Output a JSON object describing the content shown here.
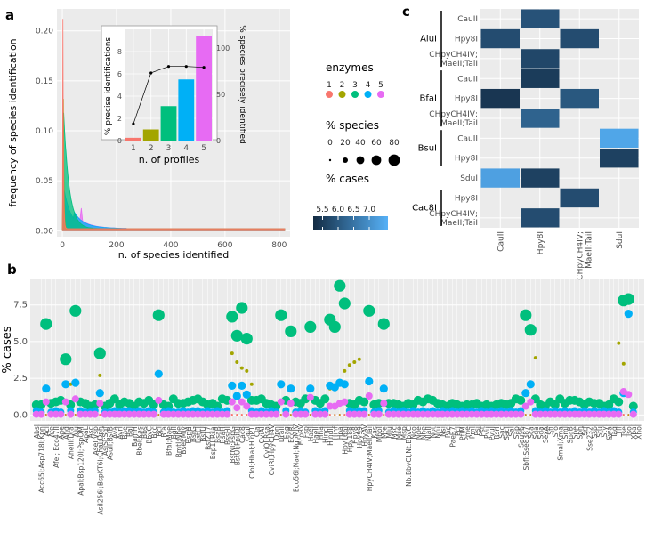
{
  "chart_data": [
    {
      "panel": "a",
      "type": "area",
      "xlabel": "n. of species identified",
      "ylabel": "frequency of species identification",
      "x_ticks": [
        0,
        200,
        400,
        600,
        800
      ],
      "y_ticks": [
        0.0,
        0.05,
        0.1,
        0.15,
        0.2
      ],
      "y_tick_labels": [
        "0.00",
        "0.05",
        "0.10",
        "0.15",
        "0.20"
      ],
      "xlim": [
        -20,
        840
      ],
      "ylim": [
        -0.006,
        0.222
      ],
      "series": [
        {
          "name": "1",
          "peak_x": 2,
          "peak": 0.212
        },
        {
          "name": "2",
          "peak_x": 4,
          "peak": 0.132
        },
        {
          "name": "3",
          "peak_x": 5,
          "peak": 0.118
        },
        {
          "name": "4",
          "peak_x": 6,
          "peak": 0.042
        },
        {
          "name": "5",
          "peak_x": 8,
          "peak": 0.028
        }
      ],
      "spike_x": 70,
      "tail_value": 0.002
    },
    {
      "panel": "a-inset",
      "type": "bar",
      "xlabel": "n. of profiles",
      "ylabel": "% precise identifications",
      "y2label": "% species precisely identified",
      "categories": [
        "1",
        "2",
        "3",
        "4",
        "5"
      ],
      "values": [
        0.25,
        1.0,
        3.1,
        5.5,
        9.4
      ],
      "y_ticks": [
        0,
        2,
        4,
        6,
        8
      ],
      "ylim": [
        0,
        10
      ],
      "line_values": [
        18,
        73,
        80,
        80,
        79
      ],
      "y2_ticks": [
        0,
        50,
        100
      ],
      "y2lim": [
        0,
        120
      ]
    },
    {
      "panel": "b",
      "type": "scatter",
      "ylabel": "% cases",
      "y_ticks": [
        0.0,
        2.5,
        5.0,
        7.5
      ],
      "y_tick_labels": [
        "0.0",
        "2.5",
        "5.0",
        "7.5"
      ],
      "ylim": [
        -0.4,
        9.3
      ],
      "categories": [
        "AbsI",
        "Acc65I;Asp718I;KpnI",
        "AclI",
        "AfeI",
        "AfeI; Eco47III",
        "AgeI",
        "AhdI",
        "AhellI;DraI",
        "AluI",
        "ApaI;Bsp120I;PspOMI",
        "ApaLI",
        "AscI",
        "AseI;VspI",
        "AsiI256I;BspKT6I;ChaI;DpnI",
        "AsiSI;SgfI",
        "AsuII;BstBI",
        "AvaI",
        "AvrII",
        "BaeI",
        "BalI",
        "BamHI",
        "BbeI;KasI",
        "BbsI",
        "BbvCI",
        "BccI",
        "BclI",
        "BfaI",
        "BfaI;MaeI",
        "BglII",
        "BmtI;NheI",
        "BseI;MlyI",
        "BspHI",
        "BsrGI",
        "BstEII",
        "BstUI",
        "BstZ17I",
        "Bsp1I;RsaI",
        "BsaBI",
        "BsaHI",
        "BssHII",
        "BstNI;PspGI",
        "BstUI;FnuDII",
        "Cac8I",
        "CauII",
        "CfoI;HhaI;HinP1I",
        "ClaI",
        "CviAII",
        "CviQI;RsaI",
        "CviRI;HpyCH4V",
        "DpnI",
        "DraIII",
        "EagI",
        "EcoRI",
        "Eco56I;NaeI;NgoMIV",
        "EcoRV",
        "FspI",
        "HaeII",
        "HaeIII",
        "HhaI",
        "HincII",
        "HindIII",
        "HinfI",
        "HpaI",
        "Hpy166II",
        "Hpy188I",
        "Hpy8I",
        "Hpy99I",
        "HpyAV",
        "HpyCH4IV;MaeII;TaiI",
        "KasI",
        "MboII",
        "MfeI",
        "MluI",
        "MscI",
        "MseI",
        "MspI",
        "Nb.BbvCI;Nt.BbvCI",
        "NcoI",
        "NdeI",
        "NheI",
        "NlaIII",
        "NotI",
        "NruI",
        "NsiI",
        "PacI",
        "PaeR7I",
        "PciI",
        "PflMI",
        "PmeI",
        "PmlI",
        "PsiI",
        "PstI",
        "PvuI",
        "PvuII",
        "RsrII",
        "SacI",
        "SacII",
        "SalI",
        "SapI",
        "Sau96I",
        "SbfI;Sse8387I",
        "ScaI",
        "SdaI",
        "SdaI",
        "SexAI",
        "SfiI",
        "SfoI",
        "SmaI;XmaI",
        "SmlI",
        "SnaBI",
        "SpeI",
        "SphI",
        "SrfI",
        "Sse232I",
        "SspI",
        "StuI",
        "StyI",
        "SwaI",
        "TaqI",
        "TfiI",
        "TseI",
        "TsoI",
        "XbaI",
        "XhoI"
      ],
      "series": [
        {
          "name": "1",
          "values": [
            0.02,
            0.02,
            0.02,
            0.02,
            0.02,
            0.02,
            0.02,
            0.02,
            0.02,
            0.02,
            0.02,
            0.02,
            0.02,
            0.02,
            0.02,
            0.02,
            0.02,
            0.02,
            0.02,
            0.02,
            0.02,
            0.02,
            0.02,
            0.02,
            0.02,
            0.02,
            0.02,
            0.02,
            0.02,
            0.02,
            0.02,
            0.02,
            0.02,
            0.02,
            0.02,
            0.02,
            0.02,
            0.02,
            0.02,
            0.02,
            0.02,
            0.02,
            0.02,
            0.02,
            0.02,
            0.02,
            0.02,
            0.02,
            0.02,
            0.02,
            0.02,
            0.02,
            0.02,
            0.02,
            0.02,
            0.02,
            0.02,
            0.02,
            0.02,
            0.02,
            0.02,
            0.02,
            0.02,
            0.02,
            0.02,
            0.02,
            0.02,
            0.02,
            0.02,
            0.02,
            0.02,
            0.02,
            0.02,
            0.02,
            0.02,
            0.02,
            0.02,
            0.02,
            0.02,
            0.02,
            0.02,
            0.02,
            0.02,
            0.02,
            0.02,
            0.02,
            0.02,
            0.02,
            0.02,
            0.02,
            0.02,
            0.02,
            0.02,
            0.02,
            0.02,
            0.02,
            0.02,
            0.02,
            0.02,
            0.02,
            0.02,
            0.02,
            0.02,
            0.02,
            0.02,
            0.02,
            0.02,
            0.02,
            0.02,
            0.02,
            0.02,
            0.02,
            0.02,
            0.02,
            0.02,
            0.02,
            0.02,
            0.02,
            0.02,
            0.02,
            0.02,
            0.02,
            0.02
          ]
        },
        {
          "name": "2",
          "values": [
            0.03,
            0.02,
            0.03,
            0.03,
            0.02,
            1.0,
            0.03,
            2.1,
            0.03,
            0.02,
            0.03,
            0.02,
            0.02,
            2.7,
            0.02,
            0.03,
            0.02,
            0.02,
            0.02,
            0.03,
            0.02,
            0.02,
            0.02,
            0.03,
            0.02,
            0.02,
            0.03,
            0.02,
            0.03,
            0.02,
            0.02,
            0.02,
            0.02,
            0.03,
            0.02,
            0.02,
            0.02,
            0.02,
            0.02,
            0.03,
            4.2,
            3.6,
            3.2,
            3.0,
            2.1,
            0.03,
            0.02,
            0.02,
            0.02,
            0.02,
            0.03,
            0.02,
            0.02,
            0.02,
            0.02,
            0.02,
            0.02,
            0.02,
            0.03,
            0.02,
            1.8,
            0.02,
            0.03,
            3.0,
            3.4,
            3.6,
            3.8,
            0.02,
            0.03,
            0.02,
            0.02,
            0.02,
            0.02,
            0.02,
            0.02,
            0.03,
            0.02,
            0.02,
            0.02,
            0.02,
            0.03,
            0.02,
            0.02,
            0.02,
            0.02,
            0.02,
            0.02,
            0.03,
            0.02,
            0.02,
            0.02,
            0.02,
            0.03,
            0.02,
            0.02,
            0.02,
            0.02,
            0.02,
            0.03,
            0.02,
            0.02,
            0.02,
            3.9,
            0.02,
            0.02,
            0.02,
            0.02,
            0.03,
            0.02,
            0.02,
            0.02,
            0.02,
            0.02,
            0.02,
            0.03,
            0.02,
            0.02,
            0.02,
            0.02,
            4.9,
            3.5,
            0.02,
            0.02
          ]
        },
        {
          "name": "3",
          "values": [
            0.7,
            0.7,
            6.2,
            0.8,
            0.9,
            1.0,
            3.8,
            0.7,
            7.1,
            0.9,
            0.8,
            0.6,
            0.7,
            4.2,
            0.6,
            0.8,
            1.1,
            0.7,
            0.9,
            0.8,
            0.6,
            0.9,
            0.8,
            1.0,
            0.7,
            6.8,
            0.7,
            0.6,
            1.1,
            0.8,
            0.8,
            0.9,
            1.0,
            1.1,
            0.9,
            0.7,
            0.8,
            0.6,
            1.1,
            1.0,
            6.7,
            5.4,
            7.3,
            5.2,
            1.0,
            1.0,
            1.1,
            0.8,
            0.7,
            0.6,
            6.8,
            1.0,
            5.7,
            0.9,
            0.8,
            1.1,
            6.0,
            1.0,
            0.8,
            1.1,
            6.5,
            6.0,
            8.8,
            7.6,
            0.8,
            0.7,
            1.0,
            0.9,
            7.1,
            0.7,
            0.8,
            6.2,
            0.8,
            0.8,
            0.7,
            0.6,
            0.8,
            0.7,
            1.0,
            0.9,
            1.1,
            1.0,
            0.8,
            0.7,
            0.6,
            0.8,
            0.7,
            0.6,
            0.7,
            0.7,
            0.8,
            0.6,
            0.7,
            0.6,
            0.7,
            0.8,
            0.7,
            0.8,
            1.1,
            1.0,
            6.8,
            5.8,
            1.1,
            0.7,
            0.6,
            0.9,
            0.7,
            1.1,
            0.8,
            1.0,
            1.0,
            0.9,
            0.7,
            0.9,
            0.8,
            0.8,
            0.6,
            0.7,
            1.1,
            0.9,
            7.8,
            7.9,
            0.6
          ]
        },
        {
          "name": "4",
          "values": [
            0.3,
            0.2,
            1.8,
            0.2,
            0.3,
            0.2,
            2.1,
            0.3,
            2.2,
            0.3,
            0.2,
            0.2,
            0.3,
            1.5,
            0.2,
            0.2,
            0.3,
            0.2,
            0.3,
            0.3,
            0.2,
            0.3,
            0.2,
            0.3,
            0.2,
            2.8,
            0.2,
            0.3,
            0.2,
            0.2,
            0.3,
            0.2,
            0.3,
            0.3,
            0.2,
            0.3,
            0.2,
            0.3,
            0.2,
            0.3,
            2.0,
            1.3,
            2.0,
            1.4,
            0.3,
            0.2,
            0.3,
            0.2,
            0.3,
            0.2,
            2.1,
            0.3,
            1.8,
            0.2,
            0.3,
            0.2,
            1.8,
            0.3,
            0.2,
            0.3,
            2.0,
            1.9,
            2.2,
            2.1,
            0.3,
            0.2,
            0.3,
            0.3,
            2.3,
            0.2,
            0.3,
            1.8,
            0.2,
            0.3,
            0.2,
            0.3,
            0.2,
            0.3,
            0.2,
            0.3,
            0.2,
            0.3,
            0.2,
            0.3,
            0.2,
            0.3,
            0.2,
            0.3,
            0.2,
            0.3,
            0.2,
            0.3,
            0.2,
            0.3,
            0.2,
            0.3,
            0.2,
            0.3,
            0.2,
            0.3,
            1.5,
            2.1,
            0.3,
            0.2,
            0.3,
            0.2,
            0.3,
            0.2,
            0.3,
            0.2,
            0.3,
            0.2,
            0.3,
            0.2,
            0.3,
            0.2,
            0.3,
            0.2,
            0.3,
            0.2,
            1.5,
            6.9,
            0.2
          ]
        },
        {
          "name": "5",
          "values": [
            0.05,
            0.05,
            0.9,
            0.05,
            0.05,
            0.05,
            0.9,
            0.05,
            1.1,
            0.05,
            0.05,
            0.05,
            0.05,
            0.8,
            0.05,
            0.05,
            0.05,
            0.05,
            0.05,
            0.05,
            0.05,
            0.05,
            0.05,
            0.05,
            0.05,
            1.0,
            0.05,
            0.05,
            0.05,
            0.05,
            0.05,
            0.05,
            0.05,
            0.05,
            0.05,
            0.05,
            0.05,
            0.05,
            0.05,
            0.05,
            0.9,
            0.5,
            0.9,
            0.6,
            0.05,
            0.05,
            0.05,
            0.05,
            0.05,
            0.05,
            0.9,
            0.05,
            0.8,
            0.05,
            0.05,
            0.05,
            1.2,
            0.05,
            0.05,
            0.05,
            0.6,
            0.6,
            0.8,
            0.9,
            0.05,
            0.05,
            0.05,
            0.05,
            1.3,
            0.05,
            0.05,
            0.8,
            0.05,
            0.05,
            0.05,
            0.05,
            0.05,
            0.05,
            0.05,
            0.05,
            0.05,
            0.05,
            0.05,
            0.05,
            0.05,
            0.05,
            0.05,
            0.05,
            0.05,
            0.05,
            0.05,
            0.05,
            0.05,
            0.05,
            0.05,
            0.05,
            0.05,
            0.05,
            0.05,
            0.05,
            0.6,
            0.9,
            0.05,
            0.05,
            0.05,
            0.05,
            0.05,
            0.05,
            0.05,
            0.05,
            0.05,
            0.05,
            0.05,
            0.05,
            0.05,
            0.05,
            0.05,
            0.05,
            0.05,
            0.05,
            1.6,
            1.4,
            0.05
          ]
        }
      ],
      "note": "marker size encodes % species (legend: 0,20,40,60,80)"
    },
    {
      "panel": "c",
      "type": "heatmap",
      "row_groups": [
        {
          "name": "AluI",
          "rows": [
            "CauII",
            "Hpy8I",
            "CHpyCH4IV;\nMaeII;TaiI"
          ]
        },
        {
          "name": "BfaI",
          "rows": [
            "CauII",
            "Hpy8I",
            "CHpyCH4IV;\nMaeII;TaiI"
          ]
        },
        {
          "name": "BsuI",
          "rows": [
            "CauII",
            "Hpy8I"
          ]
        },
        {
          "name": "",
          "rows": [
            "SduI"
          ]
        },
        {
          "name": "Cac8I",
          "rows": [
            "Hpy8I",
            "CHpyCH4IV;\nMaeII;TaiI"
          ]
        }
      ],
      "columns": [
        "CauII",
        "Hpy8I",
        "CHpyCH4IV;\nMaeII;TaiI",
        "SduI"
      ],
      "cells": [
        {
          "row": 0,
          "col": 1,
          "value": 5.9
        },
        {
          "row": 1,
          "col": 0,
          "value": 5.8
        },
        {
          "row": 1,
          "col": 2,
          "value": 5.8
        },
        {
          "row": 2,
          "col": 1,
          "value": 5.7
        },
        {
          "row": 3,
          "col": 1,
          "value": 5.5
        },
        {
          "row": 4,
          "col": 0,
          "value": 5.4
        },
        {
          "row": 4,
          "col": 2,
          "value": 6.0
        },
        {
          "row": 5,
          "col": 1,
          "value": 6.2
        },
        {
          "row": 6,
          "col": 3,
          "value": 7.4
        },
        {
          "row": 7,
          "col": 3,
          "value": 5.6
        },
        {
          "row": 8,
          "col": 0,
          "value": 7.3
        },
        {
          "row": 8,
          "col": 1,
          "value": 5.6
        },
        {
          "row": 9,
          "col": 2,
          "value": 5.8
        },
        {
          "row": 10,
          "col": 1,
          "value": 5.8
        }
      ],
      "color_range": [
        5.2,
        7.6
      ]
    }
  ],
  "legend": {
    "enzymes_title": "enzymes",
    "enzymes": [
      "1",
      "2",
      "3",
      "4",
      "5"
    ],
    "species_title": "% species",
    "species_sizes": [
      "0",
      "20",
      "40",
      "60",
      "80"
    ],
    "cases_title": "% cases",
    "cases_ticks": [
      "5.5",
      "6.0",
      "6.5",
      "7.0"
    ],
    "cases_tick_values": [
      5.5,
      6.0,
      6.5,
      7.0
    ]
  },
  "panels": {
    "a": "a",
    "b": "b",
    "c": "c"
  },
  "colors": {
    "c1": "#f8766d",
    "c2": "#a3a500",
    "c3": "#00bf7d",
    "c4": "#00b0f6",
    "c5": "#e76bf3",
    "panel_bg": "#ebebeb",
    "grid": "#ffffff",
    "heat_low": "#132b43",
    "heat_high": "#56b1f7"
  }
}
